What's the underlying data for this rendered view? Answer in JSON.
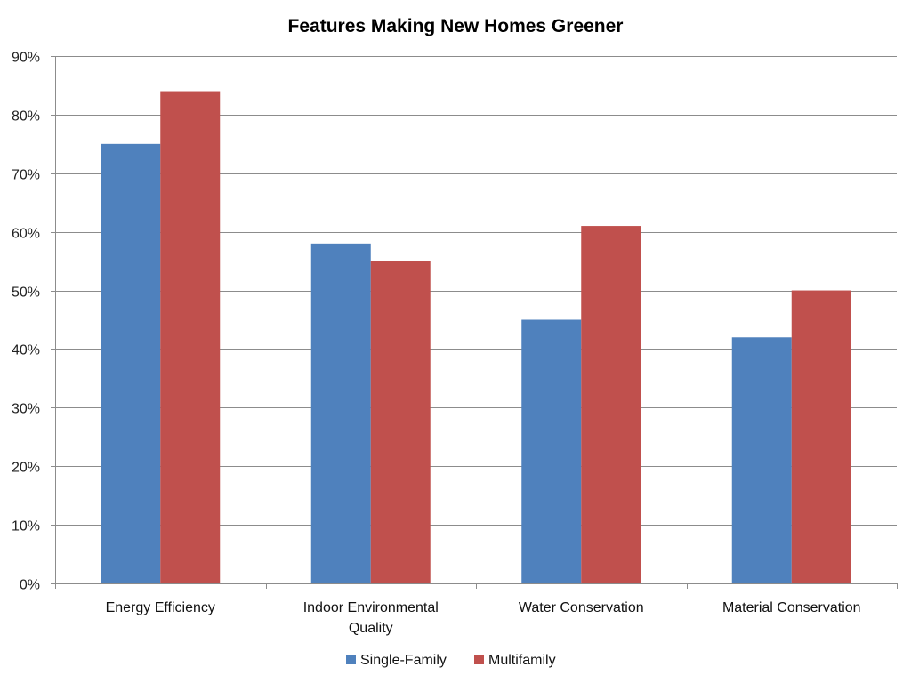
{
  "chart_data": {
    "type": "bar",
    "title": "Features Making New Homes Greener",
    "categories": [
      [
        "Energy Efficiency"
      ],
      [
        "Indoor Environmental",
        "Quality"
      ],
      [
        "Water Conservation"
      ],
      [
        "Material Conservation"
      ]
    ],
    "series": [
      {
        "name": "Single-Family",
        "color": "#4F81BD",
        "values": [
          75,
          58,
          45,
          42
        ]
      },
      {
        "name": "Multifamily",
        "color": "#C0504D",
        "values": [
          84,
          55,
          61,
          50
        ]
      }
    ],
    "yticks": [
      "0%",
      "10%",
      "20%",
      "30%",
      "40%",
      "50%",
      "60%",
      "70%",
      "80%",
      "90%"
    ],
    "ylim": [
      0,
      90
    ],
    "ystep": 10,
    "grid": true,
    "legend_position": "bottom"
  }
}
